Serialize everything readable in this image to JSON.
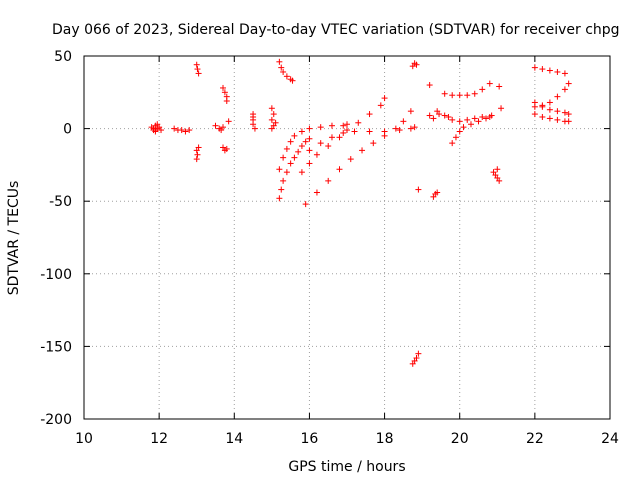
{
  "chart_data": {
    "type": "scatter",
    "title": "Day 066 of 2023, Sidereal Day-to-day VTEC variation (SDTVAR) for receiver chpg",
    "xlabel": "GPS time / hours",
    "ylabel": "SDTVAR / TECUs",
    "xlim": [
      10,
      24
    ],
    "ylim": [
      -200,
      50
    ],
    "xticks": [
      "10",
      "12",
      "14",
      "16",
      "18",
      "20",
      "22",
      "24"
    ],
    "yticks": [
      "50",
      "0",
      "-50",
      "-100",
      "-150",
      "-200"
    ],
    "grid": true,
    "marker": "plus",
    "color": "#ff0000",
    "series": [
      {
        "name": "cluster-11.9",
        "points": [
          [
            11.8,
            1
          ],
          [
            11.85,
            -1
          ],
          [
            11.9,
            2
          ],
          [
            11.95,
            0
          ],
          [
            12.0,
            1
          ],
          [
            11.9,
            -2
          ],
          [
            11.85,
            0
          ],
          [
            12.05,
            -1
          ],
          [
            11.95,
            3
          ],
          [
            11.9,
            -1
          ]
        ]
      },
      {
        "name": "cluster-12.5",
        "points": [
          [
            12.4,
            0
          ],
          [
            12.5,
            -1
          ],
          [
            12.6,
            -1
          ],
          [
            12.7,
            -2
          ],
          [
            12.8,
            -1
          ]
        ]
      },
      {
        "name": "cluster-13.0",
        "points": [
          [
            13.0,
            44
          ],
          [
            13.02,
            41
          ],
          [
            13.05,
            38
          ],
          [
            13.0,
            -15
          ],
          [
            13.02,
            -18
          ],
          [
            13.0,
            -21
          ],
          [
            13.05,
            -13
          ]
        ]
      },
      {
        "name": "cluster-13.6",
        "points": [
          [
            13.5,
            2
          ],
          [
            13.6,
            0
          ],
          [
            13.65,
            -1
          ],
          [
            13.7,
            1
          ],
          [
            13.7,
            -13
          ],
          [
            13.75,
            -15
          ],
          [
            13.8,
            -14
          ],
          [
            13.7,
            28
          ],
          [
            13.75,
            25
          ],
          [
            13.8,
            22
          ],
          [
            13.8,
            19
          ],
          [
            13.85,
            5
          ]
        ]
      },
      {
        "name": "cluster-14.5",
        "points": [
          [
            14.5,
            10
          ],
          [
            14.5,
            6
          ],
          [
            14.5,
            3
          ],
          [
            14.55,
            0
          ],
          [
            14.5,
            8
          ],
          [
            15.0,
            14
          ],
          [
            15.05,
            10
          ],
          [
            15.0,
            6
          ],
          [
            15.05,
            2
          ],
          [
            15.0,
            0
          ],
          [
            15.1,
            4
          ]
        ]
      },
      {
        "name": "arc-15.2-top",
        "points": [
          [
            15.2,
            46
          ],
          [
            15.25,
            42
          ],
          [
            15.3,
            39
          ],
          [
            15.4,
            36
          ],
          [
            15.5,
            34
          ],
          [
            15.55,
            33
          ]
        ]
      },
      {
        "name": "arc-15.2-low",
        "points": [
          [
            15.2,
            -48
          ],
          [
            15.25,
            -42
          ],
          [
            15.3,
            -36
          ],
          [
            15.4,
            -30
          ],
          [
            15.5,
            -24
          ],
          [
            15.6,
            -20
          ],
          [
            15.7,
            -16
          ],
          [
            15.8,
            -12
          ],
          [
            15.9,
            -9
          ],
          [
            16.0,
            -7
          ]
        ]
      },
      {
        "name": "arc-15.2-mid",
        "points": [
          [
            15.2,
            -28
          ],
          [
            15.3,
            -20
          ],
          [
            15.4,
            -14
          ],
          [
            15.5,
            -9
          ],
          [
            15.6,
            -5
          ],
          [
            15.8,
            -2
          ],
          [
            16.0,
            0
          ],
          [
            16.3,
            1
          ],
          [
            16.6,
            2
          ],
          [
            16.9,
            2
          ],
          [
            17.0,
            3
          ]
        ]
      },
      {
        "name": "arc-15.8-rise",
        "points": [
          [
            15.8,
            -30
          ],
          [
            16.0,
            -24
          ],
          [
            16.2,
            -18
          ],
          [
            16.5,
            -12
          ],
          [
            16.8,
            -6
          ],
          [
            17.0,
            -1
          ],
          [
            17.3,
            4
          ],
          [
            17.6,
            10
          ],
          [
            17.9,
            16
          ],
          [
            18.0,
            21
          ]
        ]
      },
      {
        "name": "arc-15.8-long",
        "points": [
          [
            15.9,
            -52
          ],
          [
            16.2,
            -44
          ],
          [
            16.5,
            -36
          ],
          [
            16.8,
            -28
          ],
          [
            17.1,
            -21
          ],
          [
            17.4,
            -15
          ],
          [
            17.7,
            -10
          ],
          [
            18.0,
            -5
          ],
          [
            18.3,
            0
          ],
          [
            18.5,
            5
          ],
          [
            18.7,
            12
          ]
        ]
      },
      {
        "name": "arc-flat",
        "points": [
          [
            16.0,
            -15
          ],
          [
            16.3,
            -10
          ],
          [
            16.6,
            -6
          ],
          [
            16.9,
            -3
          ],
          [
            17.2,
            -2
          ],
          [
            17.6,
            -2
          ],
          [
            18.0,
            -2
          ],
          [
            18.4,
            -1
          ],
          [
            18.7,
            0
          ],
          [
            18.8,
            1
          ]
        ]
      },
      {
        "name": "cluster-18.8",
        "points": [
          [
            18.8,
            45
          ],
          [
            18.85,
            44
          ],
          [
            18.75,
            43
          ],
          [
            18.9,
            -42
          ],
          [
            18.8,
            -160
          ],
          [
            18.85,
            -158
          ],
          [
            18.9,
            -155
          ],
          [
            18.75,
            -162
          ]
        ]
      },
      {
        "name": "cluster-19.2",
        "points": [
          [
            19.2,
            30
          ],
          [
            19.3,
            -47
          ],
          [
            19.35,
            -45
          ],
          [
            19.4,
            -44
          ],
          [
            19.2,
            9
          ],
          [
            19.3,
            7
          ],
          [
            19.4,
            12
          ],
          [
            19.45,
            10
          ]
        ]
      },
      {
        "name": "arc-19.6-upper",
        "points": [
          [
            19.6,
            24
          ],
          [
            19.8,
            23
          ],
          [
            20.0,
            23
          ],
          [
            20.2,
            23
          ],
          [
            20.4,
            24
          ],
          [
            20.6,
            27
          ],
          [
            20.8,
            31
          ]
        ]
      },
      {
        "name": "arc-19.7-mid",
        "points": [
          [
            19.6,
            9
          ],
          [
            19.7,
            8
          ],
          [
            19.8,
            6
          ],
          [
            20.0,
            5
          ],
          [
            20.2,
            6
          ],
          [
            20.4,
            7
          ],
          [
            20.6,
            8
          ],
          [
            20.8,
            8
          ]
        ]
      },
      {
        "name": "arc-19.8-low",
        "points": [
          [
            19.8,
            -10
          ],
          [
            19.9,
            -6
          ],
          [
            20.0,
            -2
          ],
          [
            20.1,
            1
          ],
          [
            20.3,
            3
          ],
          [
            20.5,
            5
          ],
          [
            20.7,
            7
          ],
          [
            20.85,
            9
          ]
        ]
      },
      {
        "name": "cluster-21.0",
        "points": [
          [
            20.9,
            -30
          ],
          [
            20.95,
            -32
          ],
          [
            21.0,
            -34
          ],
          [
            21.05,
            -36
          ],
          [
            21.0,
            -28
          ],
          [
            21.05,
            29
          ],
          [
            21.1,
            14
          ]
        ]
      },
      {
        "name": "arc-22-top",
        "points": [
          [
            22.0,
            42
          ],
          [
            22.2,
            41
          ],
          [
            22.4,
            40
          ],
          [
            22.6,
            39
          ],
          [
            22.8,
            38
          ]
        ]
      },
      {
        "name": "arc-22-rise",
        "points": [
          [
            22.0,
            15
          ],
          [
            22.2,
            16
          ],
          [
            22.4,
            18
          ],
          [
            22.6,
            22
          ],
          [
            22.8,
            27
          ],
          [
            22.9,
            31
          ]
        ]
      },
      {
        "name": "arc-22-mid",
        "points": [
          [
            22.0,
            18
          ],
          [
            22.2,
            15
          ],
          [
            22.4,
            13
          ],
          [
            22.6,
            12
          ],
          [
            22.8,
            11
          ],
          [
            22.9,
            10
          ]
        ]
      },
      {
        "name": "arc-22-low",
        "points": [
          [
            22.0,
            10
          ],
          [
            22.2,
            8
          ],
          [
            22.4,
            7
          ],
          [
            22.6,
            6
          ],
          [
            22.8,
            5
          ],
          [
            22.9,
            5
          ]
        ]
      }
    ]
  }
}
